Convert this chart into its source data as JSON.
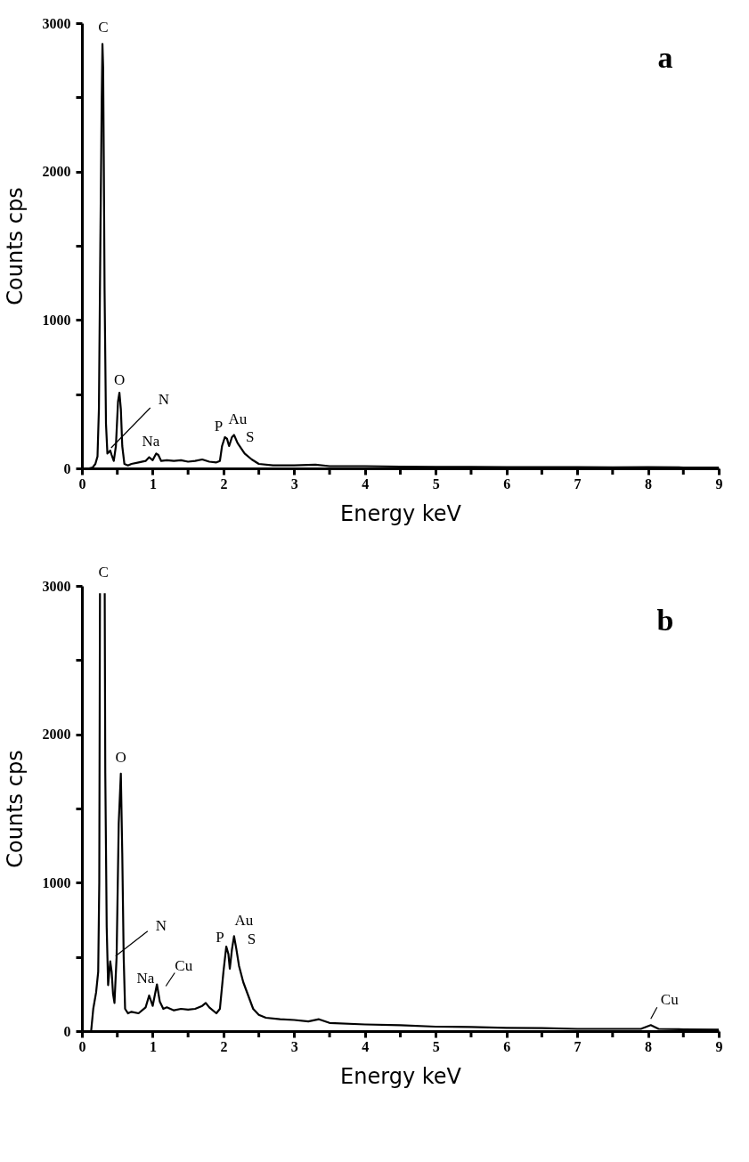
{
  "chart_data": [
    {
      "type": "line",
      "title": "a",
      "xlabel": "Energy    keV",
      "ylabel": "Counts   cps",
      "xlim": [
        0,
        9
      ],
      "ylim": [
        0,
        3000
      ],
      "xticks": [
        0,
        {
          "value": 0.5,
          "label": null
        },
        1,
        {
          "value": 1.5,
          "label": null
        },
        2,
        {
          "value": 2.5,
          "label": null
        },
        3,
        {
          "value": 3.5,
          "label": null
        },
        4,
        {
          "value": 4.5,
          "label": null
        },
        5,
        {
          "value": 5.5,
          "label": null
        },
        6,
        {
          "value": 6.5,
          "label": null
        },
        7,
        {
          "value": 7.5,
          "label": null
        },
        8,
        {
          "value": 8.5,
          "label": null
        },
        9
      ],
      "yticks": [
        0,
        {
          "value": 500,
          "label": null
        },
        1000,
        {
          "value": 1500,
          "label": null
        },
        2000,
        {
          "value": 2500,
          "label": null
        },
        3000
      ],
      "grid": false,
      "legend": false,
      "marker": "none",
      "line_style": "solid",
      "series": [
        {
          "color": "#000000",
          "x": [
            0.1,
            0.15,
            0.19,
            0.22,
            0.24,
            0.26,
            0.28,
            0.29,
            0.3,
            0.31,
            0.32,
            0.34,
            0.36,
            0.38,
            0.4,
            0.42,
            0.45,
            0.48,
            0.51,
            0.53,
            0.55,
            0.57,
            0.6,
            0.65,
            0.7,
            0.8,
            0.9,
            0.95,
            1.0,
            1.05,
            1.08,
            1.12,
            1.2,
            1.3,
            1.4,
            1.5,
            1.6,
            1.7,
            1.8,
            1.9,
            1.95,
            1.98,
            2.02,
            2.05,
            2.08,
            2.12,
            2.15,
            2.2,
            2.3,
            2.4,
            2.5,
            2.7,
            3.0,
            3.3,
            3.5,
            4,
            4.5,
            5,
            5.5,
            6,
            6.5,
            7,
            7.5,
            8,
            8.5,
            9
          ],
          "values": [
            0,
            5,
            30,
            80,
            400,
            1500,
            2500,
            2860,
            2700,
            2000,
            1200,
            300,
            100,
            110,
            120,
            90,
            50,
            150,
            450,
            510,
            400,
            150,
            30,
            20,
            30,
            40,
            50,
            75,
            55,
            100,
            90,
            50,
            55,
            50,
            55,
            45,
            50,
            60,
            45,
            40,
            50,
            150,
            210,
            200,
            150,
            210,
            225,
            170,
            100,
            60,
            30,
            20,
            20,
            25,
            15,
            15,
            12,
            10,
            10,
            8,
            8,
            8,
            7,
            8,
            6,
            5
          ]
        }
      ],
      "annotations": [
        {
          "text": "C",
          "x": 0.29,
          "y": 2860
        },
        {
          "text": "O",
          "x": 0.53,
          "y": 510
        },
        {
          "text": "N",
          "x": 0.4,
          "y": 120
        },
        {
          "text": "Na",
          "x": 1.05,
          "y": 100
        },
        {
          "text": "P",
          "x": 2.02,
          "y": 210
        },
        {
          "text": "Au",
          "x": 2.15,
          "y": 225
        },
        {
          "text": "S",
          "x": 2.3,
          "y": 100
        }
      ]
    },
    {
      "type": "line",
      "title": "b",
      "xlabel": "Energy    keV",
      "ylabel": "Counts   cps",
      "xlim": [
        0,
        9
      ],
      "ylim": [
        0,
        3000
      ],
      "xticks": [
        0,
        {
          "value": 0.5,
          "label": null
        },
        1,
        {
          "value": 1.5,
          "label": null
        },
        2,
        {
          "value": 2.5,
          "label": null
        },
        3,
        {
          "value": 3.5,
          "label": null
        },
        4,
        {
          "value": 4.5,
          "label": null
        },
        5,
        {
          "value": 5.5,
          "label": null
        },
        6,
        {
          "value": 6.5,
          "label": null
        },
        7,
        {
          "value": 7.5,
          "label": null
        },
        8,
        {
          "value": 8.5,
          "label": null
        },
        9
      ],
      "yticks": [
        0,
        {
          "value": 500,
          "label": null
        },
        1000,
        {
          "value": 1500,
          "label": null
        },
        2000,
        {
          "value": 2500,
          "label": null
        },
        3000
      ],
      "grid": false,
      "legend": false,
      "marker": "none",
      "line_style": "solid",
      "series": [
        {
          "color": "#000000",
          "x": [
            0.1,
            0.13,
            0.16,
            0.2,
            0.23,
            0.245,
            0.255,
            0.262,
            0.318,
            0.322,
            0.33,
            0.35,
            0.37,
            0.4,
            0.42,
            0.44,
            0.46,
            0.49,
            0.52,
            0.55,
            0.57,
            0.59,
            0.61,
            0.65,
            0.7,
            0.8,
            0.9,
            0.95,
            1.0,
            1.06,
            1.1,
            1.15,
            1.2,
            1.3,
            1.4,
            1.5,
            1.6,
            1.7,
            1.75,
            1.8,
            1.9,
            1.95,
            2.0,
            2.04,
            2.07,
            2.09,
            2.12,
            2.15,
            2.18,
            2.22,
            2.28,
            2.35,
            2.42,
            2.5,
            2.6,
            2.8,
            3.0,
            3.2,
            3.35,
            3.5,
            4.0,
            4.5,
            5.0,
            5.5,
            6.0,
            6.5,
            7.0,
            7.5,
            7.9,
            8.04,
            8.15,
            8.5,
            9
          ],
          "values": [
            0,
            0,
            150,
            260,
            400,
            1000,
            2950,
            null,
            null,
            2950,
            1740,
            700,
            310,
            470,
            400,
            250,
            190,
            500,
            1400,
            1735,
            1200,
            500,
            150,
            120,
            130,
            120,
            160,
            240,
            170,
            315,
            200,
            150,
            160,
            140,
            150,
            145,
            150,
            170,
            190,
            160,
            120,
            150,
            400,
            570,
            520,
            420,
            550,
            640,
            560,
            440,
            330,
            240,
            150,
            110,
            90,
            80,
            75,
            65,
            80,
            55,
            45,
            40,
            30,
            28,
            22,
            20,
            15,
            15,
            15,
            40,
            15,
            12,
            10
          ]
        }
      ],
      "annotations": [
        {
          "text": "C",
          "x": 0.255,
          "y": 2950
        },
        {
          "text": "O",
          "x": 0.55,
          "y": 1735
        },
        {
          "text": "N",
          "x": 0.4,
          "y": 470
        },
        {
          "text": "Na",
          "x": 0.95,
          "y": 240
        },
        {
          "text": "Cu",
          "x": 1.06,
          "y": 315
        },
        {
          "text": "P",
          "x": 2.04,
          "y": 570
        },
        {
          "text": "Au",
          "x": 2.15,
          "y": 640
        },
        {
          "text": "S",
          "x": 2.22,
          "y": 440
        },
        {
          "text": "Cu",
          "x": 8.04,
          "y": 40
        }
      ]
    }
  ]
}
